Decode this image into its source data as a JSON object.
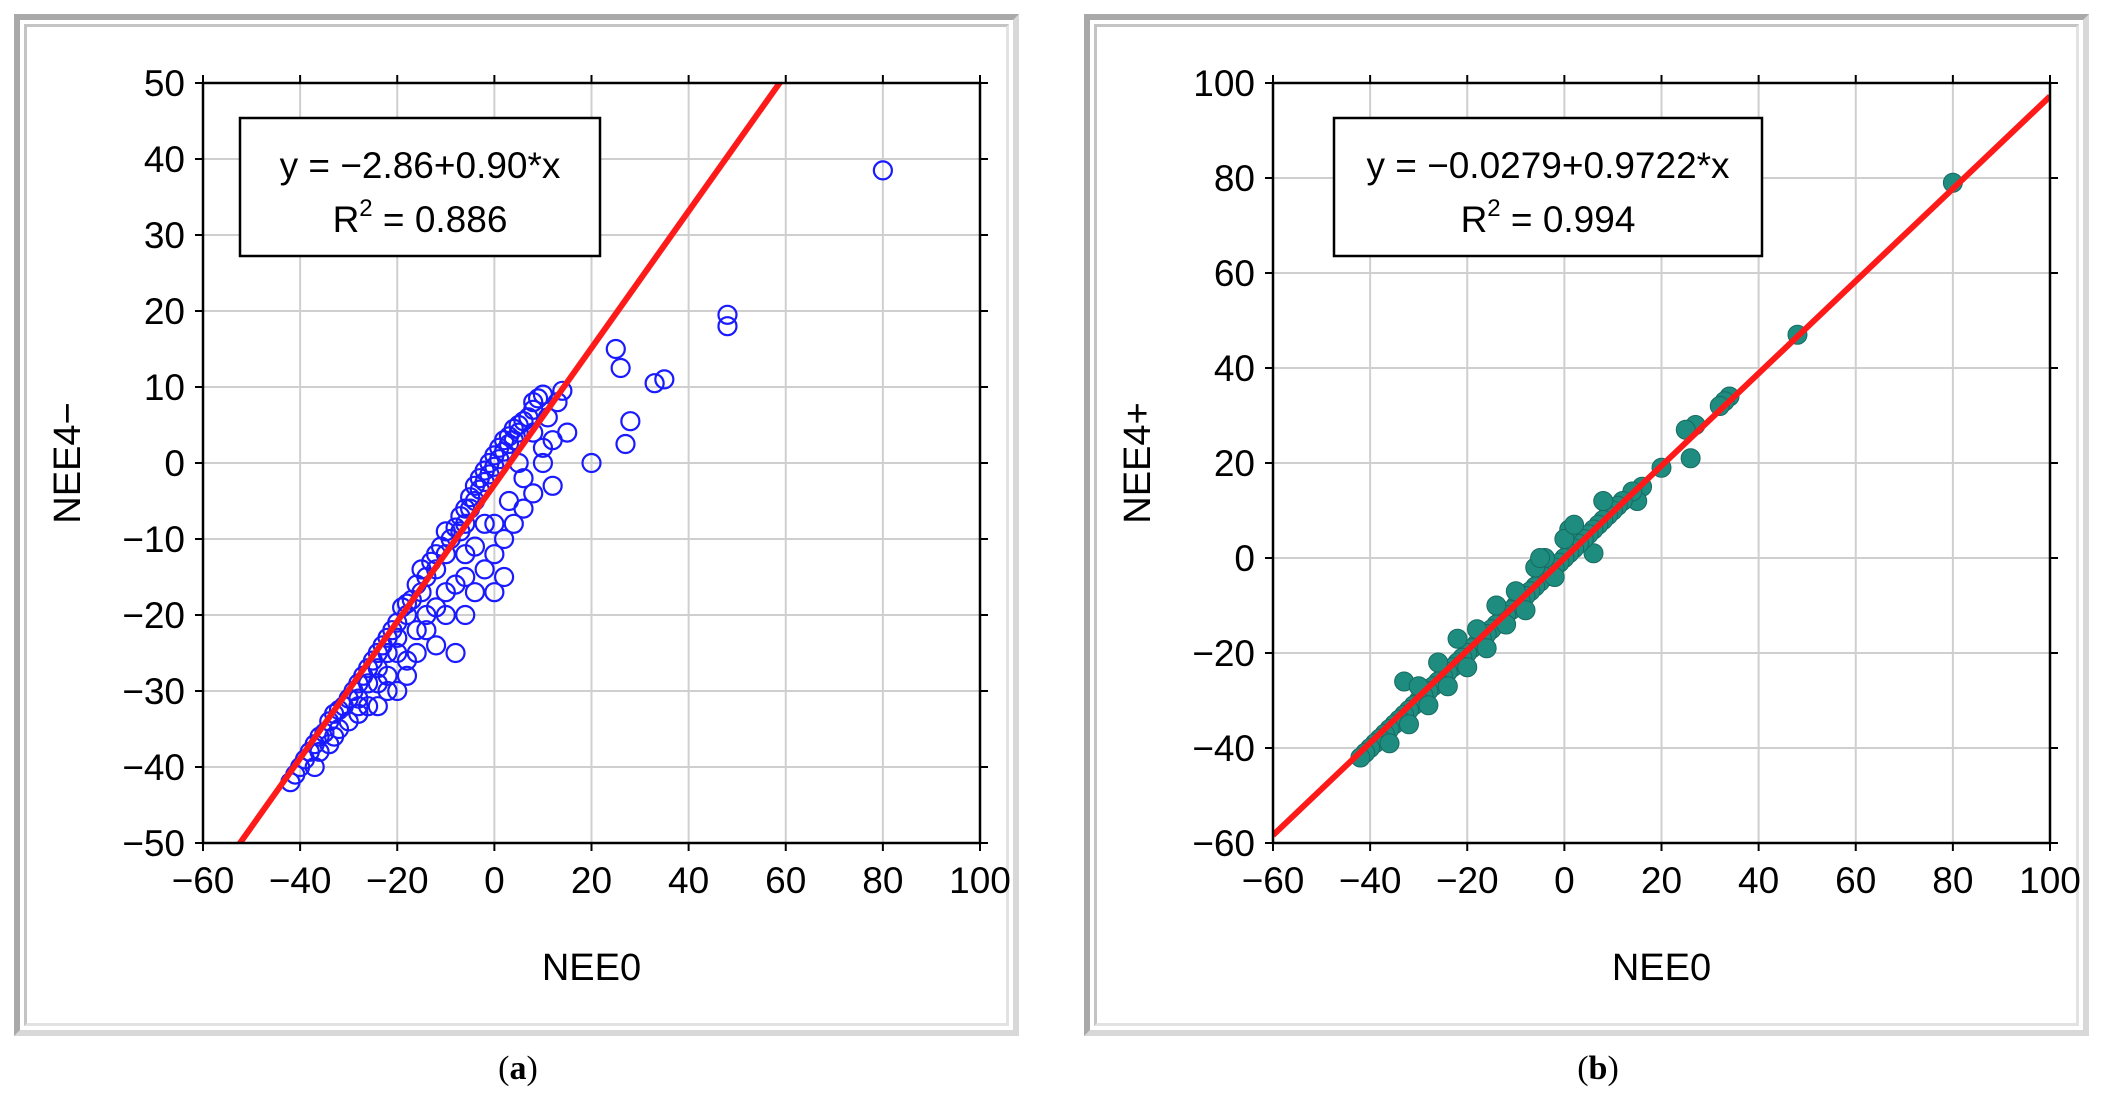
{
  "chart_data": [
    {
      "type": "scatter",
      "panel_label": "a",
      "xlabel": "NEE0",
      "ylabel": "NEE4−",
      "xlim": [
        -60,
        100
      ],
      "ylim": [
        -50,
        50
      ],
      "xticks": [
        "−60",
        "−40",
        "−20",
        "0",
        "20",
        "40",
        "60",
        "80",
        "100"
      ],
      "yticks": [
        "50",
        "40",
        "30",
        "20",
        "10",
        "0",
        "−10",
        "−20",
        "−30",
        "−40",
        "−50"
      ],
      "grid": true,
      "marker": "hollow-circle",
      "marker_color": "#1a1aff",
      "line_color": "#ff1a1a",
      "annotation": {
        "equation": "y = −2.86+0.90*x",
        "r2_label": "R",
        "r2_value": " = 0.886"
      },
      "fit": {
        "intercept": -2.86,
        "slope": 0.9
      },
      "points": [
        [
          80,
          38.5
        ],
        [
          48,
          19.5
        ],
        [
          48,
          18
        ],
        [
          35,
          11
        ],
        [
          33,
          10.5
        ],
        [
          25,
          15
        ],
        [
          26,
          12.5
        ],
        [
          28,
          5.5
        ],
        [
          27,
          2.5
        ],
        [
          20,
          0
        ],
        [
          14,
          9.5
        ],
        [
          13,
          8
        ],
        [
          15,
          4
        ],
        [
          12,
          3
        ],
        [
          12,
          -3
        ],
        [
          10,
          9
        ],
        [
          9,
          8.5
        ],
        [
          8,
          8
        ],
        [
          8,
          7
        ],
        [
          7,
          6
        ],
        [
          6,
          5.5
        ],
        [
          5,
          5
        ],
        [
          5,
          4
        ],
        [
          4,
          4.5
        ],
        [
          4,
          3
        ],
        [
          3,
          3.5
        ],
        [
          3,
          2.5
        ],
        [
          2,
          3
        ],
        [
          2,
          1.5
        ],
        [
          1,
          2
        ],
        [
          1,
          0.5
        ],
        [
          0,
          1
        ],
        [
          0,
          -0.5
        ],
        [
          -1,
          0
        ],
        [
          -1,
          -1.5
        ],
        [
          -2,
          -1
        ],
        [
          -2,
          -2.5
        ],
        [
          -3,
          -2
        ],
        [
          -3,
          -3.5
        ],
        [
          -4,
          -3
        ],
        [
          -4,
          -5
        ],
        [
          -5,
          -4.5
        ],
        [
          -5,
          -6
        ],
        [
          -6,
          -6
        ],
        [
          -6,
          -8
        ],
        [
          -7,
          -7
        ],
        [
          -7,
          -9
        ],
        [
          -8,
          -8.5
        ],
        [
          -9,
          -10
        ],
        [
          -10,
          -9
        ],
        [
          -10,
          -12
        ],
        [
          -11,
          -11
        ],
        [
          -12,
          -12
        ],
        [
          -12,
          -14
        ],
        [
          -13,
          -13
        ],
        [
          -14,
          -15
        ],
        [
          -15,
          -14
        ],
        [
          -15,
          -17
        ],
        [
          -16,
          -16
        ],
        [
          -17,
          -18
        ],
        [
          -18,
          -18.5
        ],
        [
          -18,
          -20
        ],
        [
          -19,
          -19
        ],
        [
          -20,
          -21
        ],
        [
          -20,
          -23
        ],
        [
          -21,
          -22
        ],
        [
          -22,
          -23
        ],
        [
          -22,
          -25
        ],
        [
          -23,
          -24
        ],
        [
          -24,
          -25
        ],
        [
          -24,
          -27
        ],
        [
          -25,
          -26
        ],
        [
          -26,
          -27
        ],
        [
          -26,
          -29
        ],
        [
          -27,
          -28
        ],
        [
          -28,
          -29
        ],
        [
          -28,
          -31
        ],
        [
          -29,
          -30
        ],
        [
          -30,
          -31
        ],
        [
          -31,
          -32
        ],
        [
          -32,
          -32.5
        ],
        [
          -33,
          -33
        ],
        [
          -34,
          -34
        ],
        [
          -35,
          -35.5
        ],
        [
          -36,
          -36
        ],
        [
          -37,
          -37
        ],
        [
          -38,
          -38
        ],
        [
          -39,
          -39
        ],
        [
          -40,
          -40
        ],
        [
          -41,
          -41
        ],
        [
          -42,
          -42
        ],
        [
          -37,
          -40
        ],
        [
          -33,
          -36
        ],
        [
          -28,
          -33
        ],
        [
          -24,
          -32
        ],
        [
          -20,
          -30
        ],
        [
          -18,
          -28
        ],
        [
          -16,
          -25
        ],
        [
          -12,
          -24
        ],
        [
          -8,
          -25
        ],
        [
          -10,
          -20
        ],
        [
          -6,
          -20
        ],
        [
          -4,
          -17
        ],
        [
          0,
          -17
        ],
        [
          2,
          -15
        ],
        [
          -2,
          -14
        ],
        [
          0,
          -12
        ],
        [
          2,
          -10
        ],
        [
          4,
          -8
        ],
        [
          6,
          -6
        ],
        [
          6,
          -2
        ],
        [
          8,
          -4
        ],
        [
          10,
          0
        ],
        [
          10,
          2
        ],
        [
          0,
          -8
        ],
        [
          -2,
          -8
        ],
        [
          -6,
          -12
        ],
        [
          -8,
          -16
        ],
        [
          -14,
          -20
        ],
        [
          -16,
          -22
        ],
        [
          -22,
          -30
        ],
        [
          -26,
          -32
        ],
        [
          -30,
          -34
        ],
        [
          -14,
          -22
        ],
        [
          -18,
          -26
        ],
        [
          -22,
          -28
        ],
        [
          3,
          -5
        ],
        [
          5,
          0
        ],
        [
          8,
          4
        ],
        [
          11,
          6
        ],
        [
          -4,
          -11
        ],
        [
          -6,
          -15
        ],
        [
          -10,
          -17
        ],
        [
          -12,
          -19
        ],
        [
          -20,
          -25
        ],
        [
          -24,
          -29
        ],
        [
          -28,
          -32
        ],
        [
          -32,
          -35
        ],
        [
          -34,
          -37
        ],
        [
          -36,
          -38
        ]
      ]
    },
    {
      "type": "scatter",
      "panel_label": "b",
      "xlabel": "NEE0",
      "ylabel": "NEE4+",
      "xlim": [
        -60,
        100
      ],
      "ylim": [
        -60,
        100
      ],
      "xticks": [
        "−60",
        "−40",
        "−20",
        "0",
        "20",
        "40",
        "60",
        "80",
        "100"
      ],
      "yticks": [
        "100",
        "80",
        "60",
        "40",
        "20",
        "0",
        "−20",
        "−40",
        "−60"
      ],
      "grid": true,
      "marker": "filled-circle",
      "marker_color": "#1f8c80",
      "line_color": "#ff1a1a",
      "annotation": {
        "equation": "y = −0.0279+0.9722*x",
        "r2_label": "R",
        "r2_value": " = 0.994"
      },
      "fit": {
        "intercept": -0.0279,
        "slope": 0.9722
      },
      "points": [
        [
          80,
          79
        ],
        [
          48,
          47
        ],
        [
          34,
          34
        ],
        [
          33,
          33
        ],
        [
          32,
          32
        ],
        [
          27,
          28
        ],
        [
          25,
          27
        ],
        [
          26,
          21
        ],
        [
          20,
          19
        ],
        [
          16,
          15
        ],
        [
          15,
          12
        ],
        [
          14,
          14
        ],
        [
          12,
          12
        ],
        [
          11,
          11
        ],
        [
          10,
          10
        ],
        [
          9,
          9
        ],
        [
          8,
          8
        ],
        [
          7,
          7
        ],
        [
          6,
          6
        ],
        [
          6,
          1
        ],
        [
          5,
          5
        ],
        [
          4,
          4
        ],
        [
          3,
          3
        ],
        [
          2,
          2
        ],
        [
          1,
          6
        ],
        [
          1,
          1
        ],
        [
          0,
          0
        ],
        [
          -1,
          -1
        ],
        [
          -2,
          -2
        ],
        [
          -3,
          -3
        ],
        [
          -4,
          -4
        ],
        [
          -4,
          0
        ],
        [
          -5,
          -5
        ],
        [
          -6,
          -6
        ],
        [
          -6,
          -2
        ],
        [
          -7,
          -7
        ],
        [
          -8,
          -8
        ],
        [
          -9,
          -9
        ],
        [
          -10,
          -10
        ],
        [
          -11,
          -11
        ],
        [
          -12,
          -12
        ],
        [
          -13,
          -13
        ],
        [
          -14,
          -14
        ],
        [
          -15,
          -15
        ],
        [
          -16,
          -16
        ],
        [
          -17,
          -17
        ],
        [
          -18,
          -18
        ],
        [
          -18,
          -15
        ],
        [
          -19,
          -19
        ],
        [
          -20,
          -20
        ],
        [
          -21,
          -21
        ],
        [
          -22,
          -22
        ],
        [
          -23,
          -23
        ],
        [
          -24,
          -24
        ],
        [
          -25,
          -25
        ],
        [
          -26,
          -26
        ],
        [
          -27,
          -27
        ],
        [
          -28,
          -28
        ],
        [
          -29,
          -29
        ],
        [
          -30,
          -30
        ],
        [
          -31,
          -31
        ],
        [
          -32,
          -32
        ],
        [
          -33,
          -33
        ],
        [
          -33,
          -26
        ],
        [
          -34,
          -34
        ],
        [
          -35,
          -35
        ],
        [
          -36,
          -36
        ],
        [
          -37,
          -37
        ],
        [
          -38,
          -38
        ],
        [
          -39,
          -39
        ],
        [
          -40,
          -40
        ],
        [
          -41,
          -41
        ],
        [
          -42,
          -42
        ],
        [
          -30,
          -27
        ],
        [
          -26,
          -22
        ],
        [
          -22,
          -17
        ],
        [
          -14,
          -10
        ],
        [
          -10,
          -7
        ],
        [
          -5,
          0
        ],
        [
          0,
          4
        ],
        [
          2,
          7
        ],
        [
          8,
          12
        ],
        [
          -2,
          -4
        ],
        [
          -8,
          -11
        ],
        [
          -12,
          -14
        ],
        [
          -16,
          -19
        ],
        [
          -20,
          -23
        ],
        [
          -24,
          -27
        ],
        [
          -28,
          -31
        ],
        [
          -32,
          -35
        ],
        [
          -36,
          -39
        ]
      ]
    }
  ]
}
